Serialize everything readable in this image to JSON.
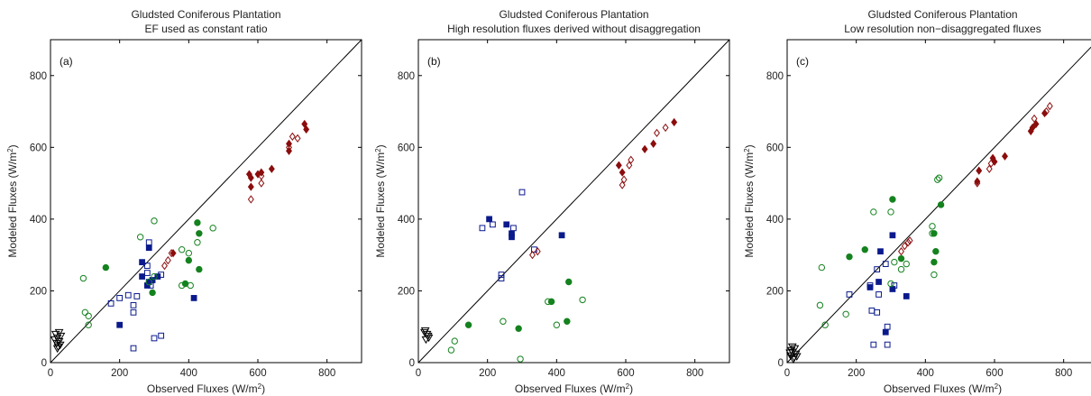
{
  "colors": {
    "blue": "#0a1a8c",
    "green": "#14821e",
    "red": "#8b0d0d",
    "black": "#000000"
  },
  "chart_data": [
    {
      "type": "scatter",
      "panel_label": "(a)",
      "title": "Gludsted Coniferous Plantation",
      "subtitle": "EF used as constant ratio",
      "xlabel": "Observed Fluxes (W/m",
      "ylabel": "Modeled Fluxes (W/m",
      "label_superscript": "2",
      "label_close": ")",
      "xlim": [
        0,
        900
      ],
      "ylim": [
        0,
        900
      ],
      "xticks": [
        "0",
        "200",
        "400",
        "600",
        "800"
      ],
      "yticks": [
        "0",
        "200",
        "400",
        "600",
        "800"
      ],
      "reference_line": "1:1",
      "series": [
        {
          "marker": "triangle-open",
          "color": "black",
          "points": [
            [
              15,
              80
            ],
            [
              20,
              70
            ],
            [
              25,
              60
            ],
            [
              18,
              55
            ],
            [
              22,
              45
            ],
            [
              28,
              50
            ],
            [
              12,
              65
            ],
            [
              30,
              75
            ],
            [
              20,
              40
            ],
            [
              25,
              85
            ]
          ]
        },
        {
          "marker": "square-open",
          "color": "blue",
          "points": [
            [
              240,
              40
            ],
            [
              300,
              68
            ],
            [
              320,
              75
            ],
            [
              240,
              140
            ],
            [
              240,
              160
            ],
            [
              250,
              185
            ],
            [
              200,
              180
            ],
            [
              175,
              165
            ],
            [
              225,
              188
            ],
            [
              280,
              250
            ],
            [
              280,
              270
            ],
            [
              285,
              335
            ],
            [
              290,
              215
            ],
            [
              320,
              245
            ]
          ]
        },
        {
          "marker": "square-filled",
          "color": "blue",
          "points": [
            [
              200,
              105
            ],
            [
              265,
              240
            ],
            [
              265,
              280
            ],
            [
              285,
              320
            ],
            [
              295,
              230
            ],
            [
              285,
              225
            ],
            [
              280,
              215
            ],
            [
              415,
              180
            ],
            [
              310,
              240
            ]
          ]
        },
        {
          "marker": "circle-open",
          "color": "green",
          "points": [
            [
              110,
              105
            ],
            [
              100,
              140
            ],
            [
              110,
              130
            ],
            [
              95,
              235
            ],
            [
              260,
              350
            ],
            [
              300,
              395
            ],
            [
              380,
              315
            ],
            [
              400,
              305
            ],
            [
              470,
              375
            ],
            [
              425,
              335
            ],
            [
              405,
              215
            ],
            [
              380,
              215
            ],
            [
              300,
              240
            ],
            [
              285,
              225
            ]
          ]
        },
        {
          "marker": "circle-filled",
          "color": "green",
          "points": [
            [
              160,
              265
            ],
            [
              295,
              195
            ],
            [
              390,
              220
            ],
            [
              400,
              285
            ],
            [
              425,
              390
            ],
            [
              430,
              360
            ],
            [
              430,
              260
            ]
          ]
        },
        {
          "marker": "diamond-open",
          "color": "red",
          "points": [
            [
              580,
              455
            ],
            [
              610,
              500
            ],
            [
              610,
              520
            ],
            [
              690,
              600
            ],
            [
              700,
              630
            ],
            [
              715,
              625
            ],
            [
              330,
              270
            ],
            [
              340,
              285
            ],
            [
              350,
              305
            ]
          ]
        },
        {
          "marker": "diamond-filled",
          "color": "red",
          "points": [
            [
              575,
              525
            ],
            [
              580,
              515
            ],
            [
              580,
              490
            ],
            [
              610,
              530
            ],
            [
              600,
              525
            ],
            [
              640,
              540
            ],
            [
              690,
              590
            ],
            [
              690,
              610
            ],
            [
              735,
              665
            ],
            [
              740,
              650
            ],
            [
              355,
              305
            ]
          ]
        }
      ]
    },
    {
      "type": "scatter",
      "panel_label": "(b)",
      "title": "Gludsted Coniferous Plantation",
      "subtitle": "High resolution fluxes derived without disaggregation",
      "xlabel": "Observed Fluxes (W/m",
      "ylabel": "Modeled Fluxes (W/m",
      "label_superscript": "2",
      "label_close": ")",
      "xlim": [
        0,
        900
      ],
      "ylim": [
        0,
        900
      ],
      "xticks": [
        "0",
        "200",
        "400",
        "600",
        "800"
      ],
      "yticks": [
        "0",
        "200",
        "400",
        "600",
        "800"
      ],
      "reference_line": "1:1",
      "series": [
        {
          "marker": "triangle-open",
          "color": "black",
          "points": [
            [
              20,
              90
            ],
            [
              25,
              80
            ],
            [
              30,
              70
            ],
            [
              22,
              65
            ],
            [
              28,
              75
            ],
            [
              18,
              85
            ]
          ]
        },
        {
          "marker": "square-open",
          "color": "blue",
          "points": [
            [
              185,
              375
            ],
            [
              215,
              385
            ],
            [
              275,
              375
            ],
            [
              300,
              475
            ],
            [
              335,
              315
            ],
            [
              240,
              245
            ],
            [
              240,
              235
            ]
          ]
        },
        {
          "marker": "square-filled",
          "color": "blue",
          "points": [
            [
              205,
              400
            ],
            [
              255,
              385
            ],
            [
              270,
              360
            ],
            [
              270,
              350
            ],
            [
              415,
              355
            ]
          ]
        },
        {
          "marker": "circle-open",
          "color": "green",
          "points": [
            [
              95,
              35
            ],
            [
              105,
              60
            ],
            [
              245,
              115
            ],
            [
              375,
              170
            ],
            [
              400,
              105
            ],
            [
              475,
              175
            ],
            [
              295,
              10
            ]
          ]
        },
        {
          "marker": "circle-filled",
          "color": "green",
          "points": [
            [
              145,
              105
            ],
            [
              290,
              95
            ],
            [
              385,
              170
            ],
            [
              430,
              115
            ],
            [
              435,
              225
            ]
          ]
        },
        {
          "marker": "diamond-open",
          "color": "red",
          "points": [
            [
              330,
              300
            ],
            [
              345,
              310
            ],
            [
              590,
              495
            ],
            [
              595,
              510
            ],
            [
              610,
              550
            ],
            [
              615,
              565
            ],
            [
              690,
              640
            ],
            [
              715,
              655
            ]
          ]
        },
        {
          "marker": "diamond-filled",
          "color": "red",
          "points": [
            [
              580,
              550
            ],
            [
              590,
              530
            ],
            [
              655,
              595
            ],
            [
              680,
              610
            ],
            [
              740,
              670
            ]
          ]
        }
      ]
    },
    {
      "type": "scatter",
      "panel_label": "(c)",
      "title": "Gludsted Coniferous Plantation",
      "subtitle": "Low resolution non−disaggregated fluxes",
      "xlabel": "Observed Fluxes (W/m",
      "ylabel": "Modeled Fluxes (W/m",
      "label_superscript": "2",
      "label_close": ")",
      "xlim": [
        0,
        900
      ],
      "ylim": [
        0,
        900
      ],
      "xticks": [
        "0",
        "200",
        "400",
        "600",
        "800"
      ],
      "yticks": [
        "0",
        "200",
        "400",
        "600",
        "800"
      ],
      "reference_line": "1:1",
      "series": [
        {
          "marker": "triangle-open",
          "color": "black",
          "points": [
            [
              10,
              20
            ],
            [
              15,
              30
            ],
            [
              20,
              15
            ],
            [
              25,
              25
            ],
            [
              12,
              35
            ],
            [
              18,
              10
            ],
            [
              22,
              40
            ],
            [
              8,
              28
            ],
            [
              28,
              18
            ],
            [
              15,
              45
            ]
          ]
        },
        {
          "marker": "square-open",
          "color": "blue",
          "points": [
            [
              180,
              190
            ],
            [
              240,
              215
            ],
            [
              245,
              145
            ],
            [
              250,
              50
            ],
            [
              260,
              140
            ],
            [
              265,
              190
            ],
            [
              260,
              260
            ],
            [
              290,
              100
            ],
            [
              290,
              50
            ],
            [
              285,
              275
            ],
            [
              310,
              215
            ]
          ]
        },
        {
          "marker": "square-filled",
          "color": "blue",
          "points": [
            [
              240,
              210
            ],
            [
              265,
              225
            ],
            [
              270,
              310
            ],
            [
              285,
              85
            ],
            [
              305,
              355
            ],
            [
              345,
              185
            ],
            [
              305,
              205
            ]
          ]
        },
        {
          "marker": "circle-open",
          "color": "green",
          "points": [
            [
              100,
              265
            ],
            [
              95,
              160
            ],
            [
              110,
              105
            ],
            [
              170,
              135
            ],
            [
              250,
              420
            ],
            [
              300,
              220
            ],
            [
              300,
              420
            ],
            [
              330,
              260
            ],
            [
              420,
              380
            ],
            [
              420,
              360
            ],
            [
              425,
              245
            ],
            [
              435,
              510
            ],
            [
              440,
              515
            ],
            [
              310,
              280
            ],
            [
              345,
              275
            ]
          ]
        },
        {
          "marker": "circle-filled",
          "color": "green",
          "points": [
            [
              180,
              295
            ],
            [
              225,
              315
            ],
            [
              305,
              455
            ],
            [
              330,
              290
            ],
            [
              425,
              280
            ],
            [
              425,
              360
            ],
            [
              430,
              310
            ],
            [
              445,
              440
            ]
          ]
        },
        {
          "marker": "diamond-open",
          "color": "red",
          "points": [
            [
              330,
              310
            ],
            [
              340,
              325
            ],
            [
              350,
              335
            ],
            [
              355,
              340
            ],
            [
              550,
              500
            ],
            [
              585,
              540
            ],
            [
              590,
              555
            ],
            [
              715,
              680
            ],
            [
              750,
              700
            ],
            [
              760,
              715
            ]
          ]
        },
        {
          "marker": "diamond-filled",
          "color": "red",
          "points": [
            [
              550,
              505
            ],
            [
              555,
              535
            ],
            [
              595,
              570
            ],
            [
              600,
              560
            ],
            [
              630,
              575
            ],
            [
              705,
              645
            ],
            [
              710,
              655
            ],
            [
              720,
              665
            ],
            [
              745,
              695
            ]
          ]
        }
      ]
    }
  ]
}
